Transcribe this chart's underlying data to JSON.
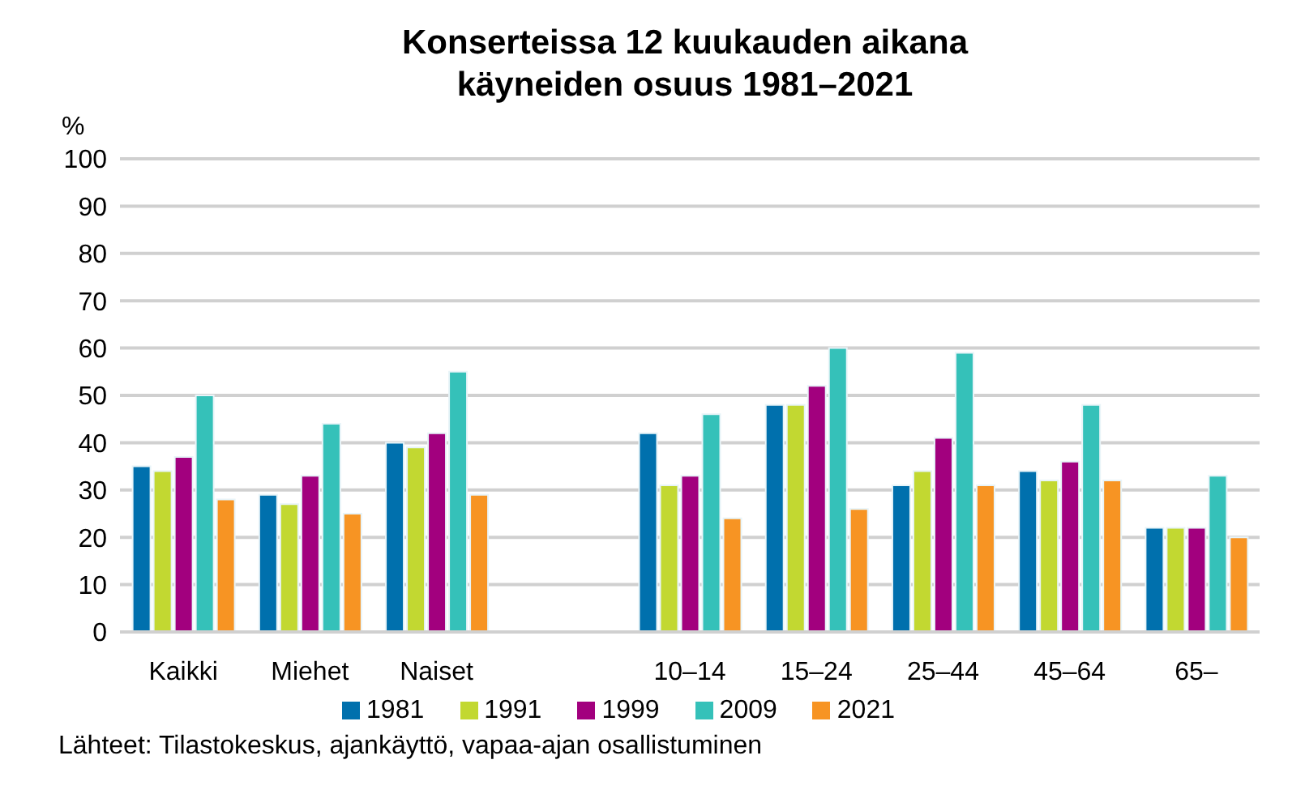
{
  "chart_data": {
    "type": "bar",
    "title": "Konserteissa 12 kuukauden aikana\nkäyneiden osuus 1981–2021",
    "ylabel": "%",
    "categories": [
      "Kaikki",
      "Miehet",
      "Naiset",
      null,
      "10–14",
      "15–24",
      "25–44",
      "45–64",
      "65–"
    ],
    "series": [
      {
        "name": "1981",
        "color": "#0070ad",
        "values": [
          35,
          29,
          40,
          null,
          42,
          48,
          31,
          34,
          22
        ]
      },
      {
        "name": "1991",
        "color": "#c2d831",
        "values": [
          34,
          27,
          39,
          null,
          31,
          48,
          34,
          32,
          22
        ]
      },
      {
        "name": "1999",
        "color": "#a2007e",
        "values": [
          37,
          33,
          42,
          null,
          33,
          52,
          41,
          36,
          22
        ]
      },
      {
        "name": "2009",
        "color": "#35c1b9",
        "values": [
          50,
          44,
          55,
          null,
          46,
          60,
          59,
          48,
          33
        ]
      },
      {
        "name": "2021",
        "color": "#f79423",
        "values": [
          28,
          25,
          29,
          null,
          24,
          26,
          31,
          32,
          20
        ]
      }
    ],
    "ylim": [
      0,
      100
    ],
    "yticks": [
      0,
      10,
      20,
      30,
      40,
      50,
      60,
      70,
      80,
      90,
      100
    ],
    "grid": "y",
    "legend": "bottom",
    "annotations": [
      "Lähteet: Tilastokeskus, ajankäyttö, vapaa-ajan osallistuminen"
    ]
  }
}
